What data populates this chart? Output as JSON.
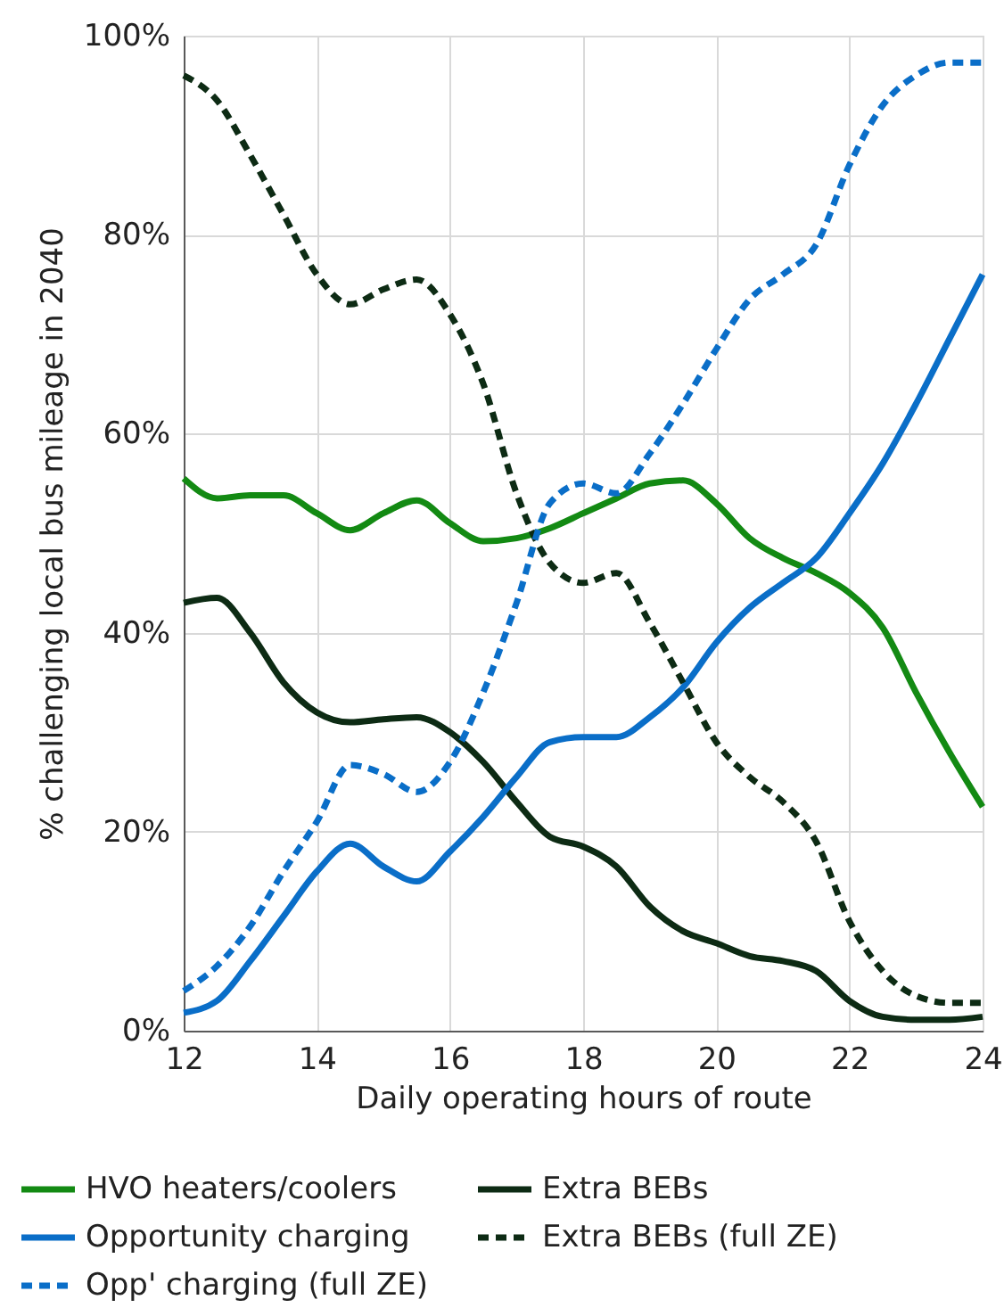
{
  "chart_data": {
    "type": "line",
    "xlabel": "Daily operating hours of route",
    "ylabel": "% challenging local bus mileage in 2040",
    "x": [
      12,
      12.5,
      13,
      13.5,
      14,
      14.5,
      15,
      15.5,
      16,
      16.5,
      17,
      17.5,
      18,
      18.5,
      19,
      19.5,
      20,
      20.5,
      21,
      21.5,
      22,
      22.5,
      23,
      23.5,
      24
    ],
    "xlim": [
      12,
      24
    ],
    "xticks": [
      12,
      14,
      16,
      18,
      20,
      22,
      24
    ],
    "ylim": [
      0,
      100
    ],
    "yticks": [
      {
        "value": 0,
        "label": "0%"
      },
      {
        "value": 20,
        "label": "20%"
      },
      {
        "value": 40,
        "label": "40%"
      },
      {
        "value": 60,
        "label": "60%"
      },
      {
        "value": 80,
        "label": "80%"
      },
      {
        "value": 100,
        "label": "100%"
      }
    ],
    "grid": true,
    "legend": "bottom",
    "marker": "none",
    "series": [
      {
        "name": "HVO heaters/coolers",
        "color": "#138a13",
        "line_style": "solid",
        "values": [
          55.5,
          53.5,
          53.8,
          53.8,
          52,
          50.3,
          52,
          53.3,
          51,
          49.2,
          49.5,
          50.5,
          52,
          53.5,
          55,
          55.3,
          53,
          49.5,
          47.5,
          46,
          44,
          40.5,
          34,
          28,
          22.5
        ]
      },
      {
        "name": "Extra BEBs",
        "color": "#0d2b14",
        "line_style": "solid",
        "values": [
          43,
          43.5,
          40,
          35,
          32,
          31,
          31.3,
          31.5,
          30,
          27,
          23,
          19.5,
          18.5,
          16.5,
          12.5,
          10,
          8.8,
          7.5,
          7,
          6,
          3,
          1.4,
          1.1,
          1.1,
          1.4
        ]
      },
      {
        "name": "Opportunity charging",
        "color": "#0a6ec8",
        "line_style": "solid",
        "values": [
          1.8,
          3,
          7,
          11.5,
          16,
          18.8,
          16.5,
          15,
          18,
          21.5,
          25.5,
          29,
          29.5,
          29.5,
          31.5,
          34.5,
          39,
          42.5,
          45,
          47.5,
          52,
          57,
          63,
          69.5,
          76
        ]
      },
      {
        "name": "Extra BEBs (full ZE)",
        "color": "#0d2b14",
        "line_style": "dashed",
        "values": [
          96,
          93.5,
          88,
          82,
          76,
          73,
          74.5,
          75.5,
          72,
          65,
          54,
          47,
          45,
          46,
          41,
          35,
          29,
          25.5,
          23,
          19,
          11,
          6,
          3.5,
          2.8,
          2.8
        ]
      },
      {
        "name": "Opp' charging (full ZE)",
        "color": "#0a6ec8",
        "line_style": "dashed",
        "values": [
          4,
          6.5,
          10.5,
          16,
          21,
          26.7,
          25.8,
          24,
          27,
          34,
          43,
          53,
          55,
          54,
          58,
          63,
          68.5,
          73.5,
          76,
          79,
          87,
          93,
          96,
          97.3,
          97.3
        ]
      }
    ]
  }
}
